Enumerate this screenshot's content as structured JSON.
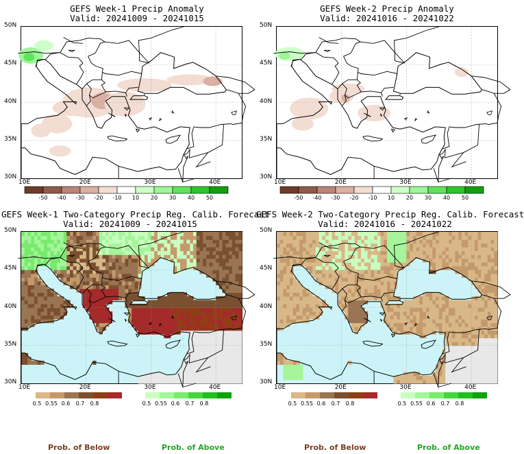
{
  "panels": [
    {
      "title": "GEFS Week-1 Precip Anomaly",
      "subtitle": "Valid: 20241009 - 20241015",
      "kind": "anomaly"
    },
    {
      "title": "GEFS Week-2 Precip Anomaly",
      "subtitle": "Valid: 20241016 - 20241022",
      "kind": "anomaly"
    },
    {
      "title": "GEFS Week-1 Two-Category Precip Reg. Calib. Forecast",
      "subtitle": "Valid: 20241009 - 20241015",
      "kind": "probability"
    },
    {
      "title": "GEFS Week-2 Two-Category Precip Reg. Calib. Forecast",
      "subtitle": "Valid: 20241016 - 20241022",
      "kind": "probability"
    }
  ],
  "axes": {
    "lat_labels": [
      "50N",
      "45N",
      "40N",
      "35N",
      "30N"
    ],
    "lon_labels": [
      "10E",
      "20E",
      "30E",
      "40E"
    ],
    "lat_range": [
      30,
      50
    ],
    "lon_range": [
      10,
      44
    ]
  },
  "anomaly_colorbar": {
    "labels": [
      "-50",
      "-40",
      "-30",
      "-20",
      "-10",
      "10",
      "20",
      "30",
      "40",
      "50"
    ],
    "colors": [
      "#6e3a2a",
      "#8f5a48",
      "#b98577",
      "#dab0a2",
      "#f3dcd2",
      "#ffffff",
      "#cfffc8",
      "#9ff59a",
      "#5fe35a",
      "#2cc52a",
      "#119e10"
    ]
  },
  "below_colorbar": {
    "labels": [
      "0.5",
      "0.55",
      "0.6",
      "0.7",
      "0.8"
    ],
    "colors": [
      "#d9b888",
      "#c49a6c",
      "#9a7554",
      "#7a5030",
      "#8f3f16",
      "#a52a2a"
    ]
  },
  "above_colorbar": {
    "labels": [
      "0.5",
      "0.55",
      "0.6",
      "0.7",
      "0.8"
    ],
    "colors": [
      "#c8ffbe",
      "#a5f59a",
      "#78ea6e",
      "#44d63c",
      "#1fbf1f",
      "#10a010"
    ]
  },
  "footer": {
    "below_label": "Prob. of Below",
    "above_label": "Prob. of Above"
  },
  "colors": {
    "sea": "#ccf4f8",
    "land_gray": "#e8e8e8",
    "below_label": "#7a3e24",
    "above_label": "#27a32a"
  }
}
